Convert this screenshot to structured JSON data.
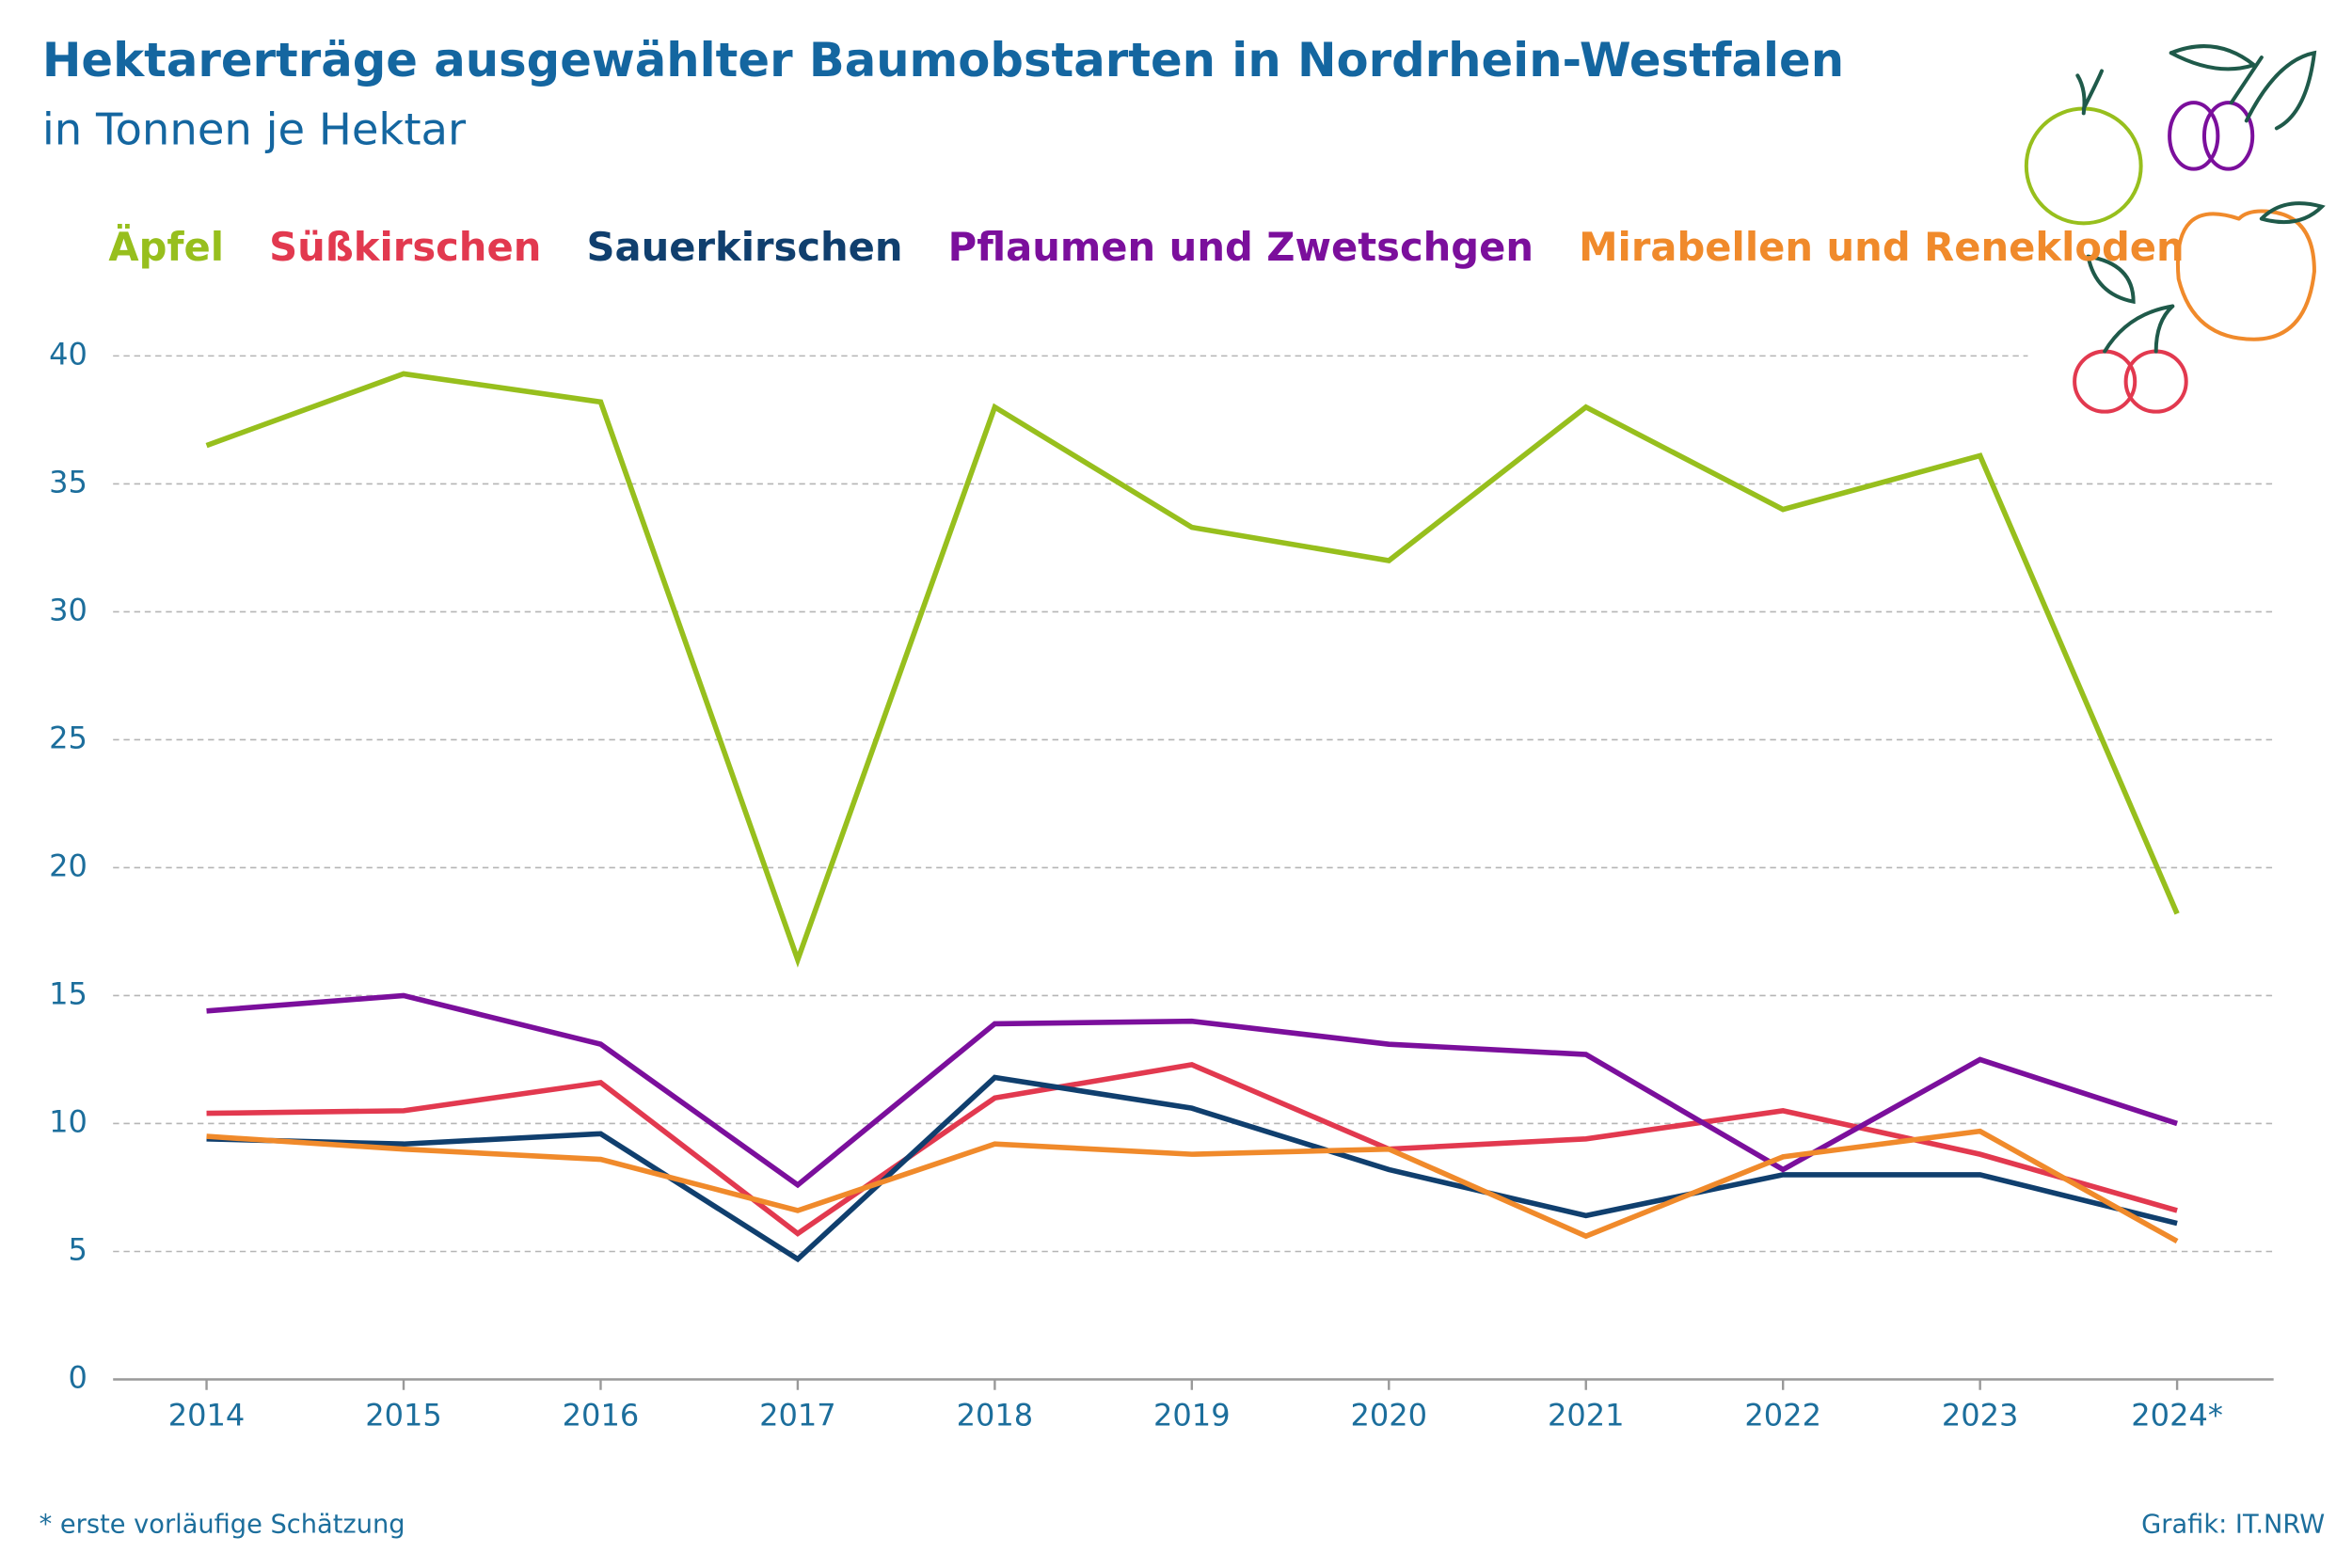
{
  "chart_data": {
    "type": "line",
    "title": "Hektarerträge ausgewählter Baumobstarten in Nordrhein-Westfalen",
    "subtitle": "in Tonnen je Hektar",
    "categories": [
      "2014",
      "2015",
      "2016",
      "2017",
      "2018",
      "2019",
      "2020",
      "2021",
      "2022",
      "2023",
      "2024*"
    ],
    "series": [
      {
        "name": "Äpfel",
        "color": "#97bf1d",
        "values": [
          36.5,
          39.3,
          38.2,
          16.4,
          38.0,
          33.3,
          32.0,
          38.0,
          34.0,
          36.1,
          18.2
        ]
      },
      {
        "name": "Süßkirschen",
        "color": "#e2394f",
        "values": [
          10.4,
          10.5,
          11.6,
          5.7,
          11.0,
          12.3,
          9.0,
          9.4,
          10.5,
          8.8,
          6.6
        ]
      },
      {
        "name": "Sauerkirschen",
        "color": "#103f6e",
        "values": [
          9.4,
          9.2,
          9.6,
          4.7,
          11.8,
          10.6,
          8.2,
          6.4,
          8.0,
          8.0,
          6.1
        ]
      },
      {
        "name": "Pflaumen und Zwetschgen",
        "color": "#7b0f9c",
        "values": [
          14.4,
          15.0,
          13.1,
          7.6,
          13.9,
          14.0,
          13.1,
          12.7,
          8.2,
          12.5,
          10.0
        ]
      },
      {
        "name": "Mirabellen und Renekloden",
        "color": "#f08a2b",
        "values": [
          9.5,
          9.0,
          8.6,
          6.6,
          9.2,
          8.8,
          9.0,
          5.6,
          8.7,
          9.7,
          5.4
        ]
      }
    ],
    "ylim": [
      0,
      40
    ],
    "yticks": [
      0,
      5,
      10,
      15,
      20,
      25,
      30,
      35,
      40
    ],
    "grid": true,
    "footnote": "*  erste vorläufige Schätzung",
    "source": "Grafik: IT.NRW"
  }
}
